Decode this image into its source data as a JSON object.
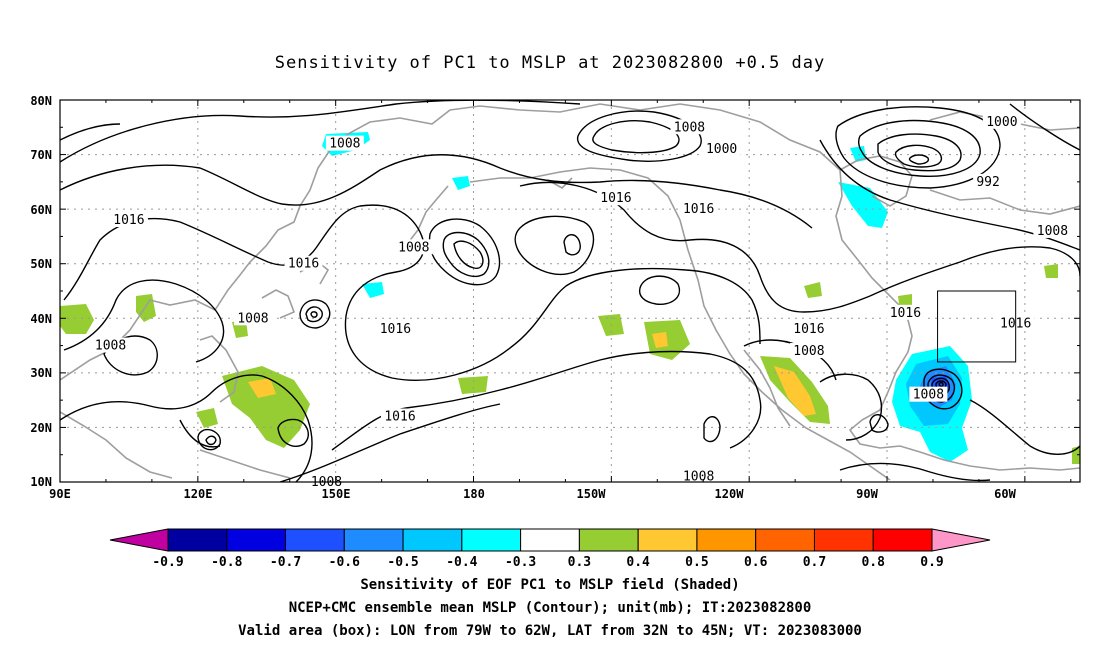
{
  "title": "Sensitivity of PC1 to MSLP at 2023082800 +0.5 day",
  "map": {
    "lat_labels": [
      "80N",
      "70N",
      "60N",
      "50N",
      "40N",
      "30N",
      "20N",
      "10N"
    ],
    "lon_labels": [
      "90E",
      "120E",
      "150E",
      "180",
      "150W",
      "120W",
      "90W",
      "60W"
    ],
    "lon_range_deg": [
      90,
      312
    ],
    "lat_range_deg": [
      10,
      80
    ],
    "contour_unit": "mb",
    "contour_labels": [
      {
        "text": "1008",
        "lon": 152,
        "lat": 72
      },
      {
        "text": "1016",
        "lon": 105,
        "lat": 58
      },
      {
        "text": "1016",
        "lon": 143,
        "lat": 50
      },
      {
        "text": "1008",
        "lon": 167,
        "lat": 53
      },
      {
        "text": "1016",
        "lon": 163,
        "lat": 38
      },
      {
        "text": "1008",
        "lon": 132,
        "lat": 40
      },
      {
        "text": "1008",
        "lon": 101,
        "lat": 35
      },
      {
        "text": "1016",
        "lon": 164,
        "lat": 22
      },
      {
        "text": "1008",
        "lon": 148,
        "lat": 10
      },
      {
        "text": "1008",
        "lon": 227,
        "lat": 75
      },
      {
        "text": "1000",
        "lon": 234,
        "lat": 71
      },
      {
        "text": "1016",
        "lon": 211,
        "lat": 62
      },
      {
        "text": "1016",
        "lon": 229,
        "lat": 60
      },
      {
        "text": "1008",
        "lon": 229,
        "lat": 11
      },
      {
        "text": "1016",
        "lon": 253,
        "lat": 38
      },
      {
        "text": "1008",
        "lon": 253,
        "lat": 34
      },
      {
        "text": "1016",
        "lon": 274,
        "lat": 41
      },
      {
        "text": "1008",
        "lon": 279,
        "lat": 26
      },
      {
        "text": "1000",
        "lon": 295,
        "lat": 76
      },
      {
        "text": "992",
        "lon": 292,
        "lat": 65
      },
      {
        "text": "1008",
        "lon": 306,
        "lat": 56
      },
      {
        "text": "1016",
        "lon": 298,
        "lat": 39
      }
    ],
    "valid_box": {
      "lon_min": 281,
      "lon_max": 298,
      "lat_min": 32,
      "lat_max": 45
    }
  },
  "colorbar": {
    "labels": [
      "-0.9",
      "-0.8",
      "-0.7",
      "-0.6",
      "-0.5",
      "-0.4",
      "-0.3",
      "0.3",
      "0.4",
      "0.5",
      "0.6",
      "0.7",
      "0.8",
      "0.9"
    ],
    "colors": [
      "#c000a0",
      "#0000a0",
      "#0000e0",
      "#1e50ff",
      "#1e8cff",
      "#00c8ff",
      "#00ffff",
      "#ffffff",
      "#96cd32",
      "#ffc832",
      "#ff9600",
      "#ff6400",
      "#ff3200",
      "#ff0000",
      "#ff96c8"
    ]
  },
  "caption": [
    "Sensitivity of EOF PC1 to MSLP field (Shaded)",
    "NCEP+CMC ensemble mean MSLP (Contour); unit(mb); IT:2023082800",
    "Valid area (box): LON from 79W to 62W, LAT from 32N to 45N; VT: 2023083000"
  ]
}
